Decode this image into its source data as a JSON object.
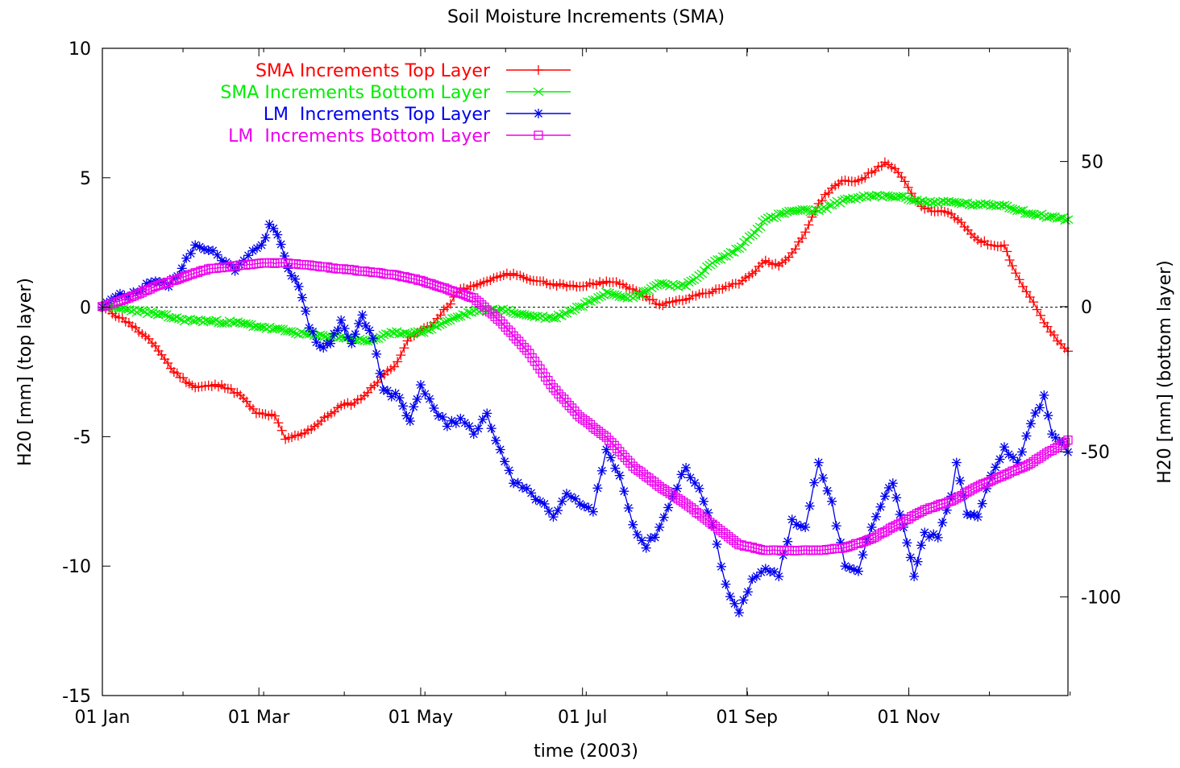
{
  "chart_data": {
    "type": "line",
    "title": "Soil Moisture Increments (SMA)",
    "xlabel": "time (2003)",
    "ylabel": "H20 [mm] (top layer)",
    "y2label": "H20 [mm] (bottom layer)",
    "xlim": [
      0,
      364
    ],
    "ylim": [
      -15,
      10
    ],
    "y2lim": [
      -134,
      89
    ],
    "x_ticks": [
      {
        "x": 0,
        "label": "01 Jan"
      },
      {
        "x": 59,
        "label": "01 Mar"
      },
      {
        "x": 120,
        "label": "01 May"
      },
      {
        "x": 181,
        "label": "01 Jul"
      },
      {
        "x": 243,
        "label": "01 Sep"
      },
      {
        "x": 304,
        "label": "01 Nov"
      }
    ],
    "y_ticks": [
      {
        "v": 10,
        "label": "10"
      },
      {
        "v": 5,
        "label": "5"
      },
      {
        "v": 0,
        "label": "0"
      },
      {
        "v": -5,
        "label": "-5"
      },
      {
        "v": -10,
        "label": "-10"
      },
      {
        "v": -15,
        "label": "-15"
      }
    ],
    "y2_ticks": [
      {
        "v": 50,
        "label": "50"
      },
      {
        "v": 0,
        "label": "0"
      },
      {
        "v": -50,
        "label": "-50"
      },
      {
        "v": -100,
        "label": "-100"
      }
    ],
    "zero_line": true,
    "legend_position": "top-left",
    "series": [
      {
        "name": "SMA Increments Top Layer",
        "color": "#ff0000",
        "marker": "plus",
        "axis": "y",
        "points": [
          [
            0,
            0
          ],
          [
            10,
            -0.6
          ],
          [
            20,
            -1.5
          ],
          [
            27,
            -2.5
          ],
          [
            35,
            -3.1
          ],
          [
            45,
            -3.0
          ],
          [
            52,
            -3.4
          ],
          [
            58,
            -4.1
          ],
          [
            65,
            -4.2
          ],
          [
            69,
            -5.1
          ],
          [
            75,
            -4.9
          ],
          [
            80,
            -4.6
          ],
          [
            85,
            -4.2
          ],
          [
            90,
            -3.8
          ],
          [
            95,
            -3.7
          ],
          [
            100,
            -3.3
          ],
          [
            105,
            -2.7
          ],
          [
            110,
            -2.3
          ],
          [
            115,
            -1.3
          ],
          [
            120,
            -0.9
          ],
          [
            125,
            -0.6
          ],
          [
            130,
            0.0
          ],
          [
            135,
            0.7
          ],
          [
            140,
            0.8
          ],
          [
            145,
            1.0
          ],
          [
            150,
            1.2
          ],
          [
            155,
            1.3
          ],
          [
            160,
            1.1
          ],
          [
            165,
            1.0
          ],
          [
            170,
            0.9
          ],
          [
            175,
            0.8
          ],
          [
            180,
            0.8
          ],
          [
            185,
            0.9
          ],
          [
            190,
            1.0
          ],
          [
            195,
            0.9
          ],
          [
            200,
            0.7
          ],
          [
            205,
            0.4
          ],
          [
            210,
            0.1
          ],
          [
            215,
            0.2
          ],
          [
            220,
            0.3
          ],
          [
            225,
            0.5
          ],
          [
            230,
            0.6
          ],
          [
            235,
            0.8
          ],
          [
            240,
            0.9
          ],
          [
            245,
            1.3
          ],
          [
            250,
            1.8
          ],
          [
            255,
            1.6
          ],
          [
            260,
            2.1
          ],
          [
            265,
            2.9
          ],
          [
            270,
            4.0
          ],
          [
            275,
            4.6
          ],
          [
            280,
            4.9
          ],
          [
            285,
            4.9
          ],
          [
            290,
            5.2
          ],
          [
            295,
            5.6
          ],
          [
            300,
            5.2
          ],
          [
            305,
            4.4
          ],
          [
            310,
            3.8
          ],
          [
            315,
            3.7
          ],
          [
            320,
            3.6
          ],
          [
            325,
            3.1
          ],
          [
            330,
            2.6
          ],
          [
            335,
            2.4
          ],
          [
            340,
            2.4
          ],
          [
            343,
            1.6
          ],
          [
            347,
            0.8
          ],
          [
            351,
            0.2
          ],
          [
            355,
            -0.6
          ],
          [
            360,
            -1.3
          ],
          [
            364,
            -1.7
          ]
        ]
      },
      {
        "name": "SMA Increments Bottom Layer",
        "color": "#00ee00",
        "marker": "cross",
        "axis": "y2",
        "points": [
          [
            0,
            0
          ],
          [
            10,
            -1
          ],
          [
            20,
            -2.5
          ],
          [
            30,
            -4.5
          ],
          [
            40,
            -5
          ],
          [
            50,
            -5.5
          ],
          [
            60,
            -7
          ],
          [
            70,
            -8.5
          ],
          [
            80,
            -10
          ],
          [
            90,
            -10.5
          ],
          [
            100,
            -12
          ],
          [
            110,
            -9
          ],
          [
            120,
            -9
          ],
          [
            130,
            -5
          ],
          [
            140,
            -1.5
          ],
          [
            150,
            -1
          ],
          [
            160,
            -3
          ],
          [
            170,
            -4
          ],
          [
            180,
            0
          ],
          [
            190,
            5
          ],
          [
            200,
            3
          ],
          [
            210,
            8
          ],
          [
            220,
            7
          ],
          [
            230,
            15
          ],
          [
            240,
            20
          ],
          [
            250,
            30
          ],
          [
            260,
            33
          ],
          [
            270,
            33
          ],
          [
            280,
            37
          ],
          [
            290,
            38
          ],
          [
            300,
            38
          ],
          [
            310,
            36
          ],
          [
            320,
            36
          ],
          [
            330,
            35
          ],
          [
            340,
            35
          ],
          [
            350,
            32
          ],
          [
            364,
            30
          ]
        ]
      },
      {
        "name": "LM  Increments Top Layer",
        "color": "#0000ee",
        "marker": "star",
        "axis": "y",
        "points": [
          [
            0,
            0
          ],
          [
            5,
            0.4
          ],
          [
            10,
            0.4
          ],
          [
            15,
            0.7
          ],
          [
            20,
            1.0
          ],
          [
            25,
            0.8
          ],
          [
            30,
            1.5
          ],
          [
            35,
            2.4
          ],
          [
            40,
            2.2
          ],
          [
            45,
            1.8
          ],
          [
            50,
            1.4
          ],
          [
            55,
            2.0
          ],
          [
            60,
            2.4
          ],
          [
            63,
            3.2
          ],
          [
            66,
            2.8
          ],
          [
            70,
            1.5
          ],
          [
            74,
            0.8
          ],
          [
            78,
            -0.8
          ],
          [
            82,
            -1.5
          ],
          [
            86,
            -1.4
          ],
          [
            90,
            -0.5
          ],
          [
            94,
            -1.4
          ],
          [
            98,
            -0.3
          ],
          [
            102,
            -1.2
          ],
          [
            106,
            -3.2
          ],
          [
            112,
            -3.5
          ],
          [
            116,
            -4.4
          ],
          [
            120,
            -3.0
          ],
          [
            125,
            -3.9
          ],
          [
            130,
            -4.6
          ],
          [
            135,
            -4.3
          ],
          [
            140,
            -4.9
          ],
          [
            145,
            -4.1
          ],
          [
            150,
            -5.5
          ],
          [
            155,
            -6.8
          ],
          [
            160,
            -7.0
          ],
          [
            165,
            -7.5
          ],
          [
            170,
            -8.1
          ],
          [
            175,
            -7.2
          ],
          [
            180,
            -7.6
          ],
          [
            185,
            -7.9
          ],
          [
            190,
            -5.5
          ],
          [
            195,
            -6.5
          ],
          [
            200,
            -8.4
          ],
          [
            205,
            -9.3
          ],
          [
            210,
            -8.5
          ],
          [
            215,
            -7.3
          ],
          [
            220,
            -6.2
          ],
          [
            225,
            -7.0
          ],
          [
            230,
            -8.4
          ],
          [
            235,
            -10.7
          ],
          [
            240,
            -11.8
          ],
          [
            245,
            -10.5
          ],
          [
            250,
            -10.1
          ],
          [
            255,
            -10.4
          ],
          [
            260,
            -8.2
          ],
          [
            265,
            -8.5
          ],
          [
            270,
            -6.0
          ],
          [
            275,
            -7.5
          ],
          [
            280,
            -10.0
          ],
          [
            285,
            -10.2
          ],
          [
            290,
            -8.5
          ],
          [
            295,
            -7.3
          ],
          [
            298,
            -6.8
          ],
          [
            302,
            -8.5
          ],
          [
            306,
            -10.4
          ],
          [
            310,
            -8.7
          ],
          [
            315,
            -8.9
          ],
          [
            320,
            -7.3
          ],
          [
            322,
            -6.0
          ],
          [
            326,
            -8.0
          ],
          [
            330,
            -8.1
          ],
          [
            335,
            -6.5
          ],
          [
            340,
            -5.4
          ],
          [
            345,
            -6.0
          ],
          [
            350,
            -4.5
          ],
          [
            355,
            -3.4
          ],
          [
            358,
            -4.9
          ],
          [
            362,
            -5.2
          ],
          [
            364,
            -5.6
          ]
        ]
      },
      {
        "name": "LM  Increments Bottom Layer",
        "color": "#ee00ee",
        "marker": "square",
        "axis": "y2",
        "points": [
          [
            0,
            0
          ],
          [
            10,
            3
          ],
          [
            20,
            7
          ],
          [
            30,
            10
          ],
          [
            40,
            13
          ],
          [
            50,
            14
          ],
          [
            60,
            15
          ],
          [
            70,
            15
          ],
          [
            80,
            14
          ],
          [
            90,
            13
          ],
          [
            100,
            12
          ],
          [
            110,
            11
          ],
          [
            120,
            9
          ],
          [
            130,
            6
          ],
          [
            140,
            3
          ],
          [
            150,
            -5
          ],
          [
            160,
            -15
          ],
          [
            170,
            -28
          ],
          [
            180,
            -38
          ],
          [
            190,
            -45
          ],
          [
            200,
            -55
          ],
          [
            210,
            -62
          ],
          [
            220,
            -68
          ],
          [
            230,
            -75
          ],
          [
            240,
            -82
          ],
          [
            250,
            -84
          ],
          [
            260,
            -84
          ],
          [
            270,
            -84
          ],
          [
            280,
            -83
          ],
          [
            290,
            -80
          ],
          [
            300,
            -75
          ],
          [
            310,
            -70
          ],
          [
            320,
            -67
          ],
          [
            330,
            -62
          ],
          [
            340,
            -58
          ],
          [
            350,
            -54
          ],
          [
            364,
            -46
          ]
        ]
      }
    ]
  }
}
